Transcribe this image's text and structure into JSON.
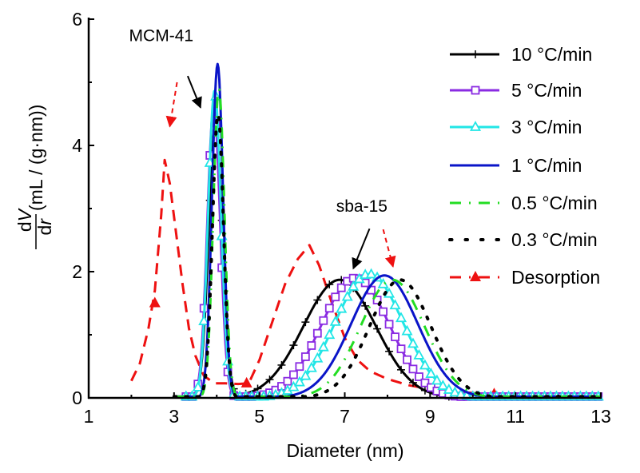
{
  "chart_data": {
    "type": "line",
    "title": "",
    "xlabel": "Diameter (nm)",
    "ylabel": {
      "prefix_num": "d",
      "num_italic": "V",
      "prefix_den": "d",
      "den_italic": "r",
      "units": "(mL / (g·nm))"
    },
    "xlim": [
      1,
      13
    ],
    "ylim": [
      0,
      6
    ],
    "xticks": [
      1,
      3,
      5,
      7,
      9,
      11,
      13
    ],
    "xticks_labels": [
      "1",
      "3",
      "5",
      "7",
      "9",
      "11",
      "13"
    ],
    "xminor": [
      2,
      4,
      6,
      8,
      10,
      12
    ],
    "yticks": [
      0,
      2,
      4,
      6
    ],
    "yticks_labels": [
      "0",
      "2",
      "4",
      "6"
    ],
    "yminor": [
      1,
      3,
      5
    ],
    "grid": false,
    "legend_position": "top-right",
    "series": [
      {
        "name": "10 °C/min",
        "color": "#000000",
        "style": "solid",
        "marker": "plus",
        "peaks": [
          {
            "center": 3.97,
            "height": 4.35,
            "width": 0.16
          },
          {
            "center": 6.88,
            "height": 1.87,
            "width": 0.85
          }
        ]
      },
      {
        "name": "5 °C/min",
        "color": "#8a2be2",
        "style": "solid",
        "marker": "square",
        "peaks": [
          {
            "center": 3.93,
            "height": 4.6,
            "width": 0.15
          },
          {
            "center": 7.25,
            "height": 1.9,
            "width": 0.8
          }
        ]
      },
      {
        "name": "3 °C/min",
        "color": "#22e6e6",
        "style": "solid",
        "marker": "triangle",
        "peaks": [
          {
            "center": 3.95,
            "height": 4.87,
            "width": 0.15
          },
          {
            "center": 7.57,
            "height": 1.96,
            "width": 0.8
          }
        ]
      },
      {
        "name": "1 °C/min",
        "color": "#0a14c8",
        "style": "solid",
        "marker": "none",
        "peaks": [
          {
            "center": 4.02,
            "height": 5.29,
            "width": 0.13
          },
          {
            "center": 7.93,
            "height": 1.94,
            "width": 0.78
          }
        ]
      },
      {
        "name": "0.5 °C/min",
        "color": "#22dd22",
        "style": "dashdot",
        "marker": "none",
        "peaks": [
          {
            "center": 4.05,
            "height": 4.9,
            "width": 0.13
          },
          {
            "center": 8.12,
            "height": 1.87,
            "width": 0.75
          }
        ]
      },
      {
        "name": "0.3 °C/min",
        "color": "#000000",
        "style": "dotted",
        "marker": "none",
        "peaks": [
          {
            "center": 4.03,
            "height": 4.5,
            "width": 0.13
          },
          {
            "center": 8.3,
            "height": 1.87,
            "width": 0.72
          }
        ]
      },
      {
        "name": "Desorption",
        "color": "#ee1111",
        "style": "dashdot",
        "marker": "triangle-filled",
        "x": [
          2.0,
          2.2,
          2.4,
          2.55,
          2.7,
          2.78,
          2.9,
          3.05,
          3.2,
          3.35,
          3.5,
          3.7,
          3.95,
          4.2,
          4.5,
          4.75,
          5.0,
          5.3,
          5.6,
          5.9,
          6.17,
          6.4,
          6.7,
          7.0,
          7.3,
          7.6,
          8.0,
          8.5,
          9.0,
          9.5,
          10.0,
          10.5,
          11.0,
          12.0,
          13.0
        ],
        "y": [
          0.27,
          0.55,
          1.1,
          1.7,
          2.9,
          3.77,
          3.4,
          2.6,
          1.8,
          1.1,
          0.67,
          0.35,
          0.23,
          0.23,
          0.22,
          0.23,
          0.6,
          1.2,
          1.8,
          2.2,
          2.42,
          2.1,
          1.5,
          0.95,
          0.6,
          0.42,
          0.3,
          0.2,
          0.14,
          0.1,
          0.08,
          0.06,
          0.05,
          0.04,
          0.04
        ]
      }
    ],
    "annotations": [
      {
        "text": "MCM-41",
        "at": [
          2.7,
          5.65
        ],
        "arrow_from": [
          3.32,
          5.1
        ],
        "arrow_to": [
          3.62,
          4.6
        ],
        "arrow_color": "#000000",
        "arrow_style": "solid"
      },
      {
        "text": "",
        "arrow_from": [
          3.07,
          5.0
        ],
        "arrow_to": [
          2.9,
          4.3
        ],
        "arrow_color": "#ee1111",
        "arrow_style": "dashed"
      },
      {
        "text": "sba-15",
        "at": [
          7.4,
          2.95
        ],
        "arrow_from": [
          7.58,
          2.68
        ],
        "arrow_to": [
          7.2,
          2.05
        ],
        "arrow_color": "#000000",
        "arrow_style": "solid"
      },
      {
        "text": "",
        "arrow_from": [
          7.9,
          2.67
        ],
        "arrow_to": [
          8.13,
          2.08
        ],
        "arrow_color": "#ee1111",
        "arrow_style": "dashed"
      }
    ]
  }
}
